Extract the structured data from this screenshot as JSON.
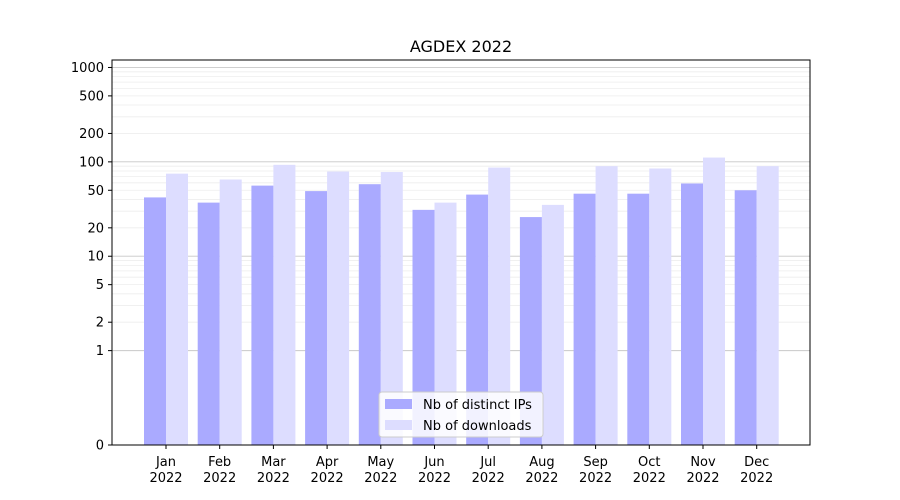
{
  "chart_data": {
    "type": "bar",
    "title": "AGDEX 2022",
    "xlabel": "",
    "ylabel": "",
    "y_scale": "symlog",
    "ylim": [
      0,
      1200
    ],
    "y_ticks": [
      0,
      1,
      2,
      5,
      10,
      20,
      50,
      100,
      200,
      500,
      1000
    ],
    "y_tick_labels": [
      "0",
      "1",
      "2",
      "5",
      "10",
      "20",
      "50",
      "100",
      "200",
      "500",
      "1000"
    ],
    "categories": [
      [
        "Jan",
        "2022"
      ],
      [
        "Feb",
        "2022"
      ],
      [
        "Mar",
        "2022"
      ],
      [
        "Apr",
        "2022"
      ],
      [
        "May",
        "2022"
      ],
      [
        "Jun",
        "2022"
      ],
      [
        "Jul",
        "2022"
      ],
      [
        "Aug",
        "2022"
      ],
      [
        "Sep",
        "2022"
      ],
      [
        "Oct",
        "2022"
      ],
      [
        "Nov",
        "2022"
      ],
      [
        "Dec",
        "2022"
      ]
    ],
    "series": [
      {
        "name": "Nb of distinct IPs",
        "color": "#aaaaff",
        "values": [
          42,
          37,
          56,
          49,
          58,
          31,
          45,
          26,
          46,
          46,
          59,
          50
        ]
      },
      {
        "name": "Nb of downloads",
        "color": "#ddddff",
        "values": [
          75,
          65,
          93,
          79,
          78,
          37,
          87,
          35,
          90,
          85,
          111,
          90
        ]
      }
    ],
    "grid": true,
    "legend": "lower-center"
  }
}
